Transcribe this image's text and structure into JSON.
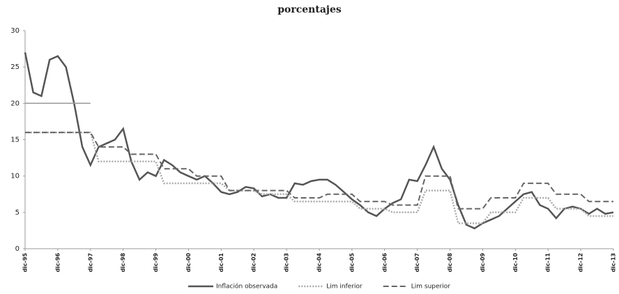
{
  "chart_data": {
    "type": "line",
    "title": "porcentajes",
    "categories": [
      "dic-95",
      null,
      null,
      null,
      "dic-96",
      null,
      null,
      null,
      "dic-97",
      null,
      null,
      null,
      "dic-98",
      null,
      null,
      null,
      "dic-99",
      null,
      null,
      null,
      "dic-00",
      null,
      null,
      null,
      "dic-01",
      null,
      null,
      null,
      "dic-02",
      null,
      null,
      null,
      "dic-03",
      null,
      null,
      null,
      "dic-04",
      null,
      null,
      null,
      "dic-05",
      null,
      null,
      null,
      "dic-06",
      null,
      null,
      null,
      "dic-07",
      null,
      null,
      null,
      "dic-08",
      null,
      null,
      null,
      "dic-09",
      null,
      null,
      null,
      "dic-10",
      null,
      null,
      null,
      "dic-11",
      null,
      null,
      null,
      "dic-12",
      null,
      null,
      null,
      "dic-13"
    ],
    "series": [
      {
        "name": "Inflación observada",
        "color": "#555555",
        "dash": "none",
        "width": 2.5,
        "values": [
          27,
          21.5,
          21,
          26,
          26.5,
          25,
          20,
          14,
          11.5,
          14,
          14.5,
          15,
          16.5,
          12,
          9.5,
          10.5,
          10,
          12.2,
          11.5,
          10.5,
          10,
          9.5,
          10,
          9,
          7.8,
          7.5,
          7.8,
          8.5,
          8.3,
          7.2,
          7.5,
          7,
          7,
          9,
          8.8,
          9.3,
          9.5,
          9.5,
          8.8,
          7.8,
          6.8,
          6,
          5,
          4.5,
          5.5,
          6.3,
          6.8,
          9.5,
          9.3,
          11.5,
          14,
          11,
          9.5,
          6,
          3.3,
          2.8,
          3.5,
          4,
          4.5,
          5.5,
          6.5,
          7.5,
          7.8,
          6,
          5.5,
          4.2,
          5.5,
          5.8,
          5.5,
          4.8,
          5.5,
          4.8,
          5
        ]
      },
      {
        "name": "Lim inferior",
        "color": "#aaaaaa",
        "dash": "2 2",
        "width": 2.5,
        "values": [
          16,
          16,
          16,
          16,
          16,
          16,
          16,
          16,
          16,
          12,
          12,
          12,
          12,
          12,
          12,
          12,
          12,
          9,
          9,
          9,
          9,
          9,
          9,
          9,
          9,
          8,
          8,
          8,
          8,
          7.5,
          7.5,
          7.5,
          7.5,
          6.5,
          6.5,
          6.5,
          6.5,
          6.5,
          6.5,
          6.5,
          6.5,
          5.5,
          5.5,
          5.5,
          5.5,
          5,
          5,
          5,
          5,
          8,
          8,
          8,
          8,
          3.5,
          3.5,
          3.5,
          3.5,
          5,
          5,
          5,
          5,
          7,
          7,
          7,
          7,
          5.5,
          5.5,
          5.5,
          5.5,
          4.5,
          4.5,
          4.5,
          4.5
        ]
      },
      {
        "name": "Lim superior",
        "color": "#666666",
        "dash": "8 4",
        "width": 2,
        "values": [
          16,
          16,
          16,
          16,
          16,
          16,
          16,
          16,
          16,
          14,
          14,
          14,
          14,
          13,
          13,
          13,
          13,
          11,
          11,
          11,
          11,
          10,
          10,
          10,
          10,
          8,
          8,
          8,
          8,
          8,
          8,
          8,
          8,
          7,
          7,
          7,
          7,
          7.5,
          7.5,
          7.5,
          7.5,
          6.5,
          6.5,
          6.5,
          6.5,
          6,
          6,
          6,
          6,
          10,
          10,
          10,
          10,
          5.5,
          5.5,
          5.5,
          5.5,
          7,
          7,
          7,
          7,
          9,
          9,
          9,
          9,
          7.5,
          7.5,
          7.5,
          7.5,
          6.5,
          6.5,
          6.5,
          6.5
        ]
      },
      {
        "color": "#999999",
        "dash": "none",
        "width": 1.5,
        "values": [
          20,
          20,
          20,
          20,
          20,
          20,
          20,
          20,
          20,
          null,
          null,
          null,
          null,
          null,
          null,
          null,
          null,
          null,
          null,
          null,
          null,
          null,
          null,
          null,
          null,
          null,
          null,
          null,
          null,
          null,
          null,
          null,
          null,
          null,
          null,
          null,
          null,
          null,
          null,
          null,
          null,
          null,
          null,
          null,
          null,
          null,
          null,
          null,
          null,
          null,
          null,
          null,
          null,
          null,
          null,
          null,
          null,
          null,
          null,
          null,
          null,
          null,
          null,
          null,
          null,
          null,
          null,
          null,
          null,
          null,
          null,
          null,
          null
        ]
      }
    ],
    "ylim": [
      0,
      30
    ],
    "yticks": [
      0,
      5,
      10,
      15,
      20,
      25,
      30
    ],
    "grid": false
  }
}
